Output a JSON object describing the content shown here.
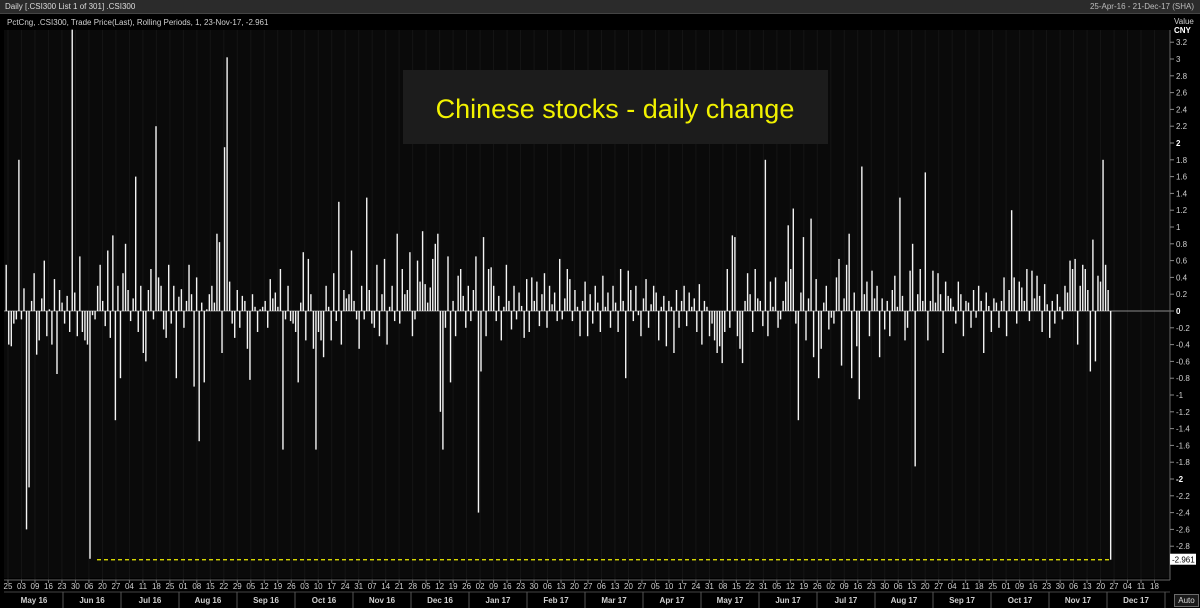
{
  "window": {
    "title": "Daily [.CSI300 List 1 of 301] .CSI300",
    "date_range": "25-Apr-16 - 21-Dec-17 (SHA)"
  },
  "chart_data": {
    "type": "bar",
    "title": "Chinese stocks - daily change",
    "info_line": "PctCng, .CSI300, Trade Price(Last), Rolling Periods, 1, 23-Nov-17, -2.961",
    "value_label": "Value",
    "currency_label": "CNY",
    "ylim": [
      -3.1,
      3.45
    ],
    "ytick_labels": [
      "3.2",
      "3",
      "2.8",
      "2.6",
      "2.4",
      "2.2",
      "2",
      "1.8",
      "1.6",
      "1.4",
      "1.2",
      "1",
      "0.8",
      "0.6",
      "0.4",
      "0.2",
      "0",
      "-0.2",
      "-0.4",
      "-0.6",
      "-0.8",
      "-1",
      "-1.2",
      "-1.4",
      "-1.6",
      "-1.8",
      "-2",
      "-2.2",
      "-2.4",
      "-2.6",
      "-2.8"
    ],
    "bold_ticks": [
      "2",
      "0",
      "-2"
    ],
    "last_value_label": "-2.961",
    "last_value": -2.961,
    "reference_line": -2.961,
    "day_labels": [
      "25",
      "03",
      "09",
      "16",
      "23",
      "30",
      "06",
      "20",
      "27",
      "04",
      "11",
      "18",
      "25",
      "01",
      "08",
      "15",
      "22",
      "29",
      "05",
      "12",
      "19",
      "26",
      "03",
      "10",
      "17",
      "24",
      "31",
      "07",
      "14",
      "21",
      "28",
      "05",
      "12",
      "19",
      "26",
      "02",
      "09",
      "16",
      "23",
      "30",
      "06",
      "13",
      "20",
      "27",
      "06",
      "13",
      "20",
      "27",
      "05",
      "10",
      "17",
      "24",
      "31",
      "08",
      "15",
      "22",
      "31",
      "05",
      "12",
      "19",
      "26",
      "02",
      "09",
      "16",
      "23",
      "30",
      "06",
      "13",
      "20",
      "27",
      "04",
      "11",
      "18",
      "25",
      "01",
      "09",
      "16",
      "23",
      "30",
      "06",
      "13",
      "20",
      "27",
      "04",
      "11",
      "18"
    ],
    "month_labels": [
      "May 16",
      "Jun 16",
      "Jul 16",
      "Aug 16",
      "Sep 16",
      "Oct 16",
      "Nov 16",
      "Dec 16",
      "Jan 17",
      "Feb 17",
      "Mar 17",
      "Apr 17",
      "May 17",
      "Jun 17",
      "Jul 17",
      "Aug 17",
      "Sep 17",
      "Oct 17",
      "Nov 17",
      "Dec 17"
    ],
    "values": [
      0.55,
      -0.4,
      -0.42,
      -0.15,
      -0.1,
      1.8,
      -0.1,
      0.27,
      -2.6,
      -2.1,
      0.12,
      0.45,
      -0.52,
      -0.35,
      0.15,
      0.6,
      -0.3,
      0.02,
      -0.4,
      0.38,
      -0.75,
      0.25,
      0.1,
      -0.15,
      0.18,
      -0.25,
      3.35,
      0.22,
      -0.3,
      0.65,
      -0.25,
      -0.35,
      -0.4,
      -2.95,
      -0.05,
      -0.1,
      0.3,
      0.55,
      0.12,
      -0.18,
      0.72,
      -0.32,
      0.9,
      -1.3,
      0.3,
      -0.8,
      0.45,
      0.8,
      0.25,
      -0.12,
      0.15,
      1.6,
      -0.25,
      0.3,
      -0.5,
      -0.6,
      0.25,
      0.5,
      -0.1,
      2.2,
      0.4,
      0.3,
      -0.22,
      -0.32,
      0.55,
      -0.15,
      0.3,
      -0.8,
      0.17,
      0.26,
      -0.2,
      0.12,
      0.55,
      0.2,
      -0.9,
      0.4,
      -1.55,
      0.1,
      -0.85,
      0.02,
      0.2,
      0.3,
      0.1,
      0.92,
      0.82,
      -0.5,
      1.95,
      3.02,
      0.35,
      -0.15,
      -0.32,
      0.25,
      -0.2,
      0.18,
      0.12,
      -0.45,
      -0.82,
      0.2,
      0.05,
      -0.25,
      0.02,
      0.05,
      0.12,
      -0.2,
      0.38,
      0.15,
      0.22,
      0.05,
      0.5,
      -1.65,
      -0.1,
      0.3,
      -0.12,
      -0.15,
      -0.25,
      -0.85,
      0.1,
      0.7,
      -0.35,
      0.62,
      0.2,
      -0.45,
      -1.65,
      -0.25,
      -0.35,
      -0.55,
      0.3,
      0.05,
      -0.35,
      0.45,
      -0.12,
      1.3,
      -0.4,
      0.25,
      0.15,
      0.2,
      0.72,
      0.12,
      -0.1,
      -0.45,
      0.3,
      -0.1,
      1.35,
      0.25,
      -0.15,
      -0.2,
      0.55,
      -0.3,
      0.2,
      0.62,
      -0.4,
      0.05,
      0.3,
      -0.12,
      0.92,
      -0.15,
      0.5,
      0.2,
      0.25,
      0.7,
      -0.3,
      -0.1,
      0.6,
      0.35,
      0.95,
      0.32,
      0.1,
      0.28,
      0.62,
      0.8,
      0.92,
      -1.2,
      -1.65,
      -0.2,
      0.65,
      -0.85,
      0.12,
      -0.3,
      0.42,
      0.5,
      0.18,
      -0.2,
      0.3,
      -0.12,
      0.25,
      0.65,
      -2.4,
      -0.72,
      0.88,
      -0.3,
      0.5,
      0.52,
      0.3,
      -0.12,
      0.18,
      -0.35,
      0.05,
      0.55,
      0.12,
      -0.22,
      0.3,
      -0.1,
      0.22,
      0.06,
      -0.32,
      0.38,
      -0.25,
      0.4,
      0.12,
      0.35,
      -0.18,
      0.2,
      0.45,
      -0.2,
      0.3,
      0.08,
      0.22,
      -0.12,
      0.62,
      -0.1,
      0.15,
      0.5,
      0.38,
      -0.12,
      0.25,
      0.05,
      -0.3,
      0.12,
      0.35,
      -0.3,
      0.2,
      -0.15,
      0.3,
      0.1,
      -0.25,
      0.42,
      0.05,
      0.22,
      -0.2,
      0.3,
      0.1,
      -0.25,
      0.5,
      0.12,
      -0.8,
      0.48,
      0.25,
      -0.12,
      0.3,
      -0.05,
      -0.3,
      0.15,
      0.38,
      -0.2,
      0.08,
      0.3,
      0.22,
      -0.35,
      0.05,
      0.18,
      -0.42,
      0.12,
      0.05,
      -0.5,
      0.25,
      -0.2,
      0.12,
      0.3,
      -0.18,
      0.22,
      0.05,
      0.15,
      -0.25,
      0.32,
      -0.4,
      0.12,
      0.05,
      -0.3,
      -0.15,
      -0.35,
      -0.5,
      -0.42,
      -0.62,
      -0.25,
      0.5,
      -0.2,
      0.9,
      0.88,
      -0.3,
      -0.45,
      -0.62,
      0.12,
      0.45,
      0.2,
      -0.25,
      0.5,
      0.15,
      0.12,
      -0.18,
      1.8,
      -0.3,
      0.35,
      0.05,
      0.4,
      -0.2,
      -0.1,
      0.12,
      0.35,
      1.02,
      0.5,
      1.22,
      -0.15,
      -1.3,
      0.22,
      0.88,
      -0.35,
      0.15,
      1.1,
      -0.55,
      0.38,
      -0.8,
      -0.45,
      0.1,
      0.3,
      -0.22,
      -0.08,
      -0.15,
      0.4,
      0.62,
      -0.65,
      0.15,
      0.55,
      0.92,
      -0.8,
      0.22,
      -0.42,
      -1.05,
      1.72,
      0.2,
      0.35,
      -0.3,
      0.48,
      0.15,
      0.3,
      -0.55,
      0.15,
      -0.22,
      0.12,
      -0.3,
      0.25,
      0.42,
      0.05,
      1.35,
      0.18,
      -0.35,
      -0.2,
      0.48,
      0.8,
      -1.85,
      0.2,
      0.5,
      0.12,
      1.65,
      -0.35,
      0.12,
      0.48,
      0.1,
      0.45,
      0.2,
      -0.5,
      0.35,
      0.18,
      0.15,
      0.05,
      -0.15,
      0.35,
      0.2,
      -0.3,
      0.12,
      0.1,
      -0.2,
      0.25,
      -0.08,
      0.3,
      0.12,
      -0.5,
      0.22,
      0.06,
      -0.25,
      0.15,
      0.1,
      -0.2,
      0.12,
      0.4,
      -0.3,
      0.25,
      1.2,
      0.4,
      -0.15,
      0.35,
      0.28,
      0.12,
      0.5,
      -0.12,
      0.48,
      0.15,
      0.42,
      0.18,
      -0.25,
      0.32,
      0.08,
      -0.32,
      0.12,
      -0.15,
      0.2,
      0.05,
      -0.1,
      0.3,
      0.22,
      0.6,
      0.5,
      0.62,
      -0.4,
      0.3,
      0.55,
      0.5,
      0.25,
      -0.72,
      0.85,
      -0.6,
      0.42,
      0.35,
      1.8,
      0.55,
      0.25,
      -2.961
    ]
  }
}
